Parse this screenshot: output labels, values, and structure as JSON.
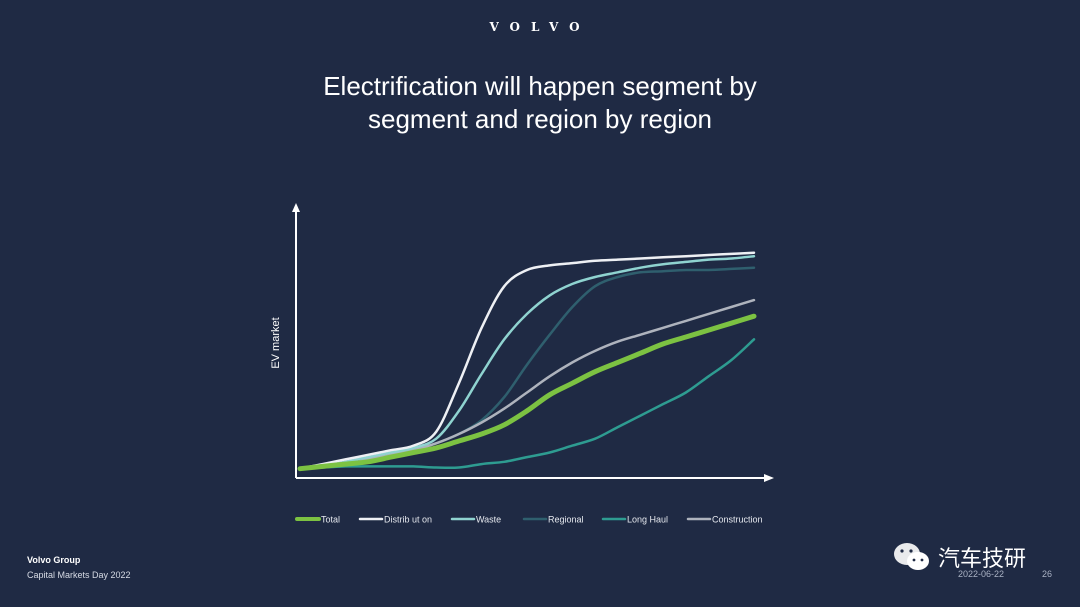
{
  "logo": "VOLVO",
  "title_line1": "Electrification will happen segment by",
  "title_line2": "segment and region by region",
  "footer": {
    "org": "Volvo Group",
    "event": "Capital Markets Day 2022",
    "date": "2022-06-22",
    "page": "26"
  },
  "watermark": "汽车技研",
  "chart_data": {
    "type": "line",
    "title": "",
    "xlabel": "",
    "ylabel": "EV market",
    "x": [
      0,
      5,
      10,
      15,
      20,
      25,
      30,
      35,
      40,
      45,
      50,
      55,
      60,
      65,
      70,
      75,
      80,
      85,
      90,
      95,
      100
    ],
    "ylim": [
      0,
      100
    ],
    "grid": false,
    "legend_position": "bottom",
    "series": [
      {
        "name": "Total",
        "color": "#7cc242",
        "width": 5,
        "values": [
          1,
          2,
          3,
          4,
          6,
          8,
          10,
          13,
          16,
          20,
          26,
          33,
          38,
          43,
          47,
          51,
          55,
          58,
          61,
          64,
          67
        ]
      },
      {
        "name": "Distribution",
        "color": "#eef0f4",
        "width": 2.5,
        "values": [
          1,
          3,
          5,
          7,
          9,
          11,
          17,
          38,
          62,
          80,
          87,
          89,
          90,
          91,
          91.5,
          92,
          92.5,
          93,
          93.5,
          94,
          94.5
        ]
      },
      {
        "name": "Waste",
        "color": "#8fd3d0",
        "width": 2.5,
        "values": [
          1,
          2,
          4,
          6,
          8,
          10,
          14,
          26,
          42,
          57,
          68,
          76,
          81,
          84,
          86,
          88,
          89.5,
          90.5,
          91.5,
          92,
          93
        ]
      },
      {
        "name": "Regional",
        "color": "#2f5f6e",
        "width": 2.5,
        "values": [
          1,
          2,
          3,
          5,
          7,
          9,
          12,
          16,
          22,
          32,
          46,
          59,
          71,
          80,
          84,
          86,
          86.5,
          87,
          87,
          87.5,
          88
        ]
      },
      {
        "name": "Long Haul",
        "color": "#2e9c91",
        "width": 2.5,
        "values": [
          1,
          1.5,
          2,
          2,
          2,
          2,
          1.5,
          1.5,
          3,
          4,
          6,
          8,
          11,
          14,
          19,
          24,
          29,
          34,
          41,
          48,
          57
        ]
      },
      {
        "name": "Construction",
        "color": "#aeb3bd",
        "width": 2.5,
        "values": [
          1,
          2,
          3,
          5,
          7,
          9,
          12,
          16,
          21,
          27,
          34,
          41,
          47,
          52,
          56,
          59,
          62,
          65,
          68,
          71,
          74
        ]
      }
    ],
    "legend_labels": [
      "Total",
      "Distrib ut on",
      "Waste",
      "Regional",
      "Long Haul",
      "Construction"
    ]
  }
}
